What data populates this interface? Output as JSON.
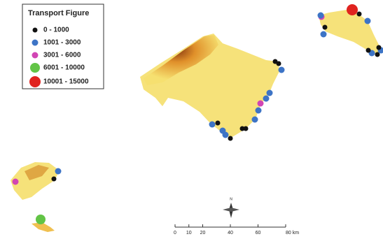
{
  "legend": {
    "title": "Transport Figure",
    "items": [
      {
        "label": "0 - 1000",
        "color": "#111111"
      },
      {
        "label": "1001 - 3000",
        "color": "#3d74c6"
      },
      {
        "label": "3001 - 6000",
        "color": "#d145b4"
      },
      {
        "label": "6001 - 10000",
        "color": "#62c446"
      },
      {
        "label": "10001 - 15000",
        "color": "#e0231f"
      }
    ]
  },
  "north": "N",
  "scale_bar": {
    "ticks": [
      0,
      10,
      20,
      40,
      60,
      {
        "value": 80,
        "label": "80 km"
      }
    ]
  }
}
